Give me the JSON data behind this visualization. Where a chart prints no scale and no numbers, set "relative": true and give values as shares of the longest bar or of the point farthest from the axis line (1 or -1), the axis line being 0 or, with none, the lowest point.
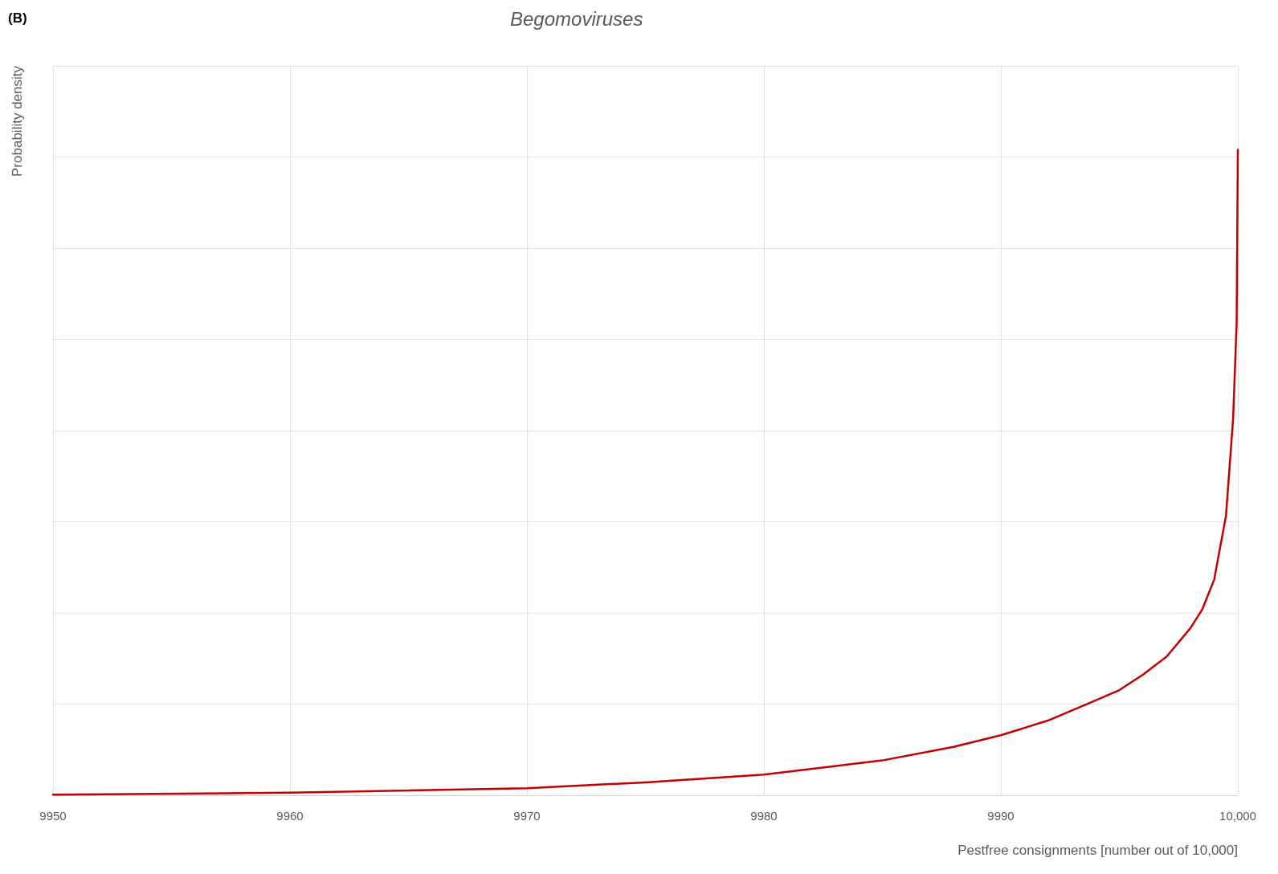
{
  "chart_data": {
    "type": "line",
    "title": "Begomoviruses",
    "annotations": [
      "(B)"
    ],
    "xlabel": "Pestfree consignments [number out of 10,000]",
    "ylabel": "Probability density",
    "relative": true,
    "grid": true,
    "marker": "none",
    "line_style": "solid",
    "xlim": [
      9950,
      10000
    ],
    "xticks": [
      9950,
      9960,
      9970,
      9980,
      9990,
      {
        "value": 10000,
        "label": "10,000"
      }
    ],
    "series": [
      {
        "color": "#c00000",
        "x": [
          9950,
          9960,
          9970,
          9975,
          9980,
          9985,
          9988,
          9990,
          9992,
          9994,
          9995,
          9996,
          9997,
          9998,
          9998.5,
          9999,
          9999.5,
          9999.8,
          9999.95,
          10000
        ],
        "values": [
          0.001,
          0.004,
          0.011,
          0.02,
          0.032,
          0.054,
          0.075,
          0.093,
          0.116,
          0.147,
          0.163,
          0.187,
          0.215,
          0.259,
          0.288,
          0.334,
          0.433,
          0.583,
          0.732,
          1
        ]
      }
    ]
  }
}
